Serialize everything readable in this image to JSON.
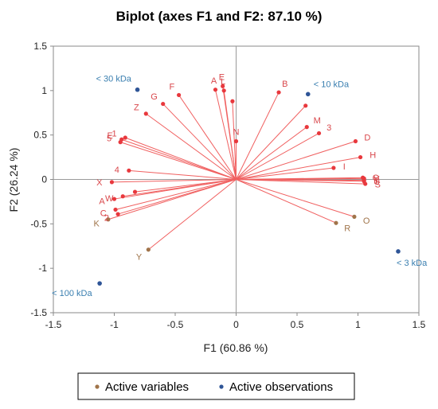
{
  "chart_data": {
    "type": "scatter",
    "title": "Biplot (axes F1 and F2: 87.10 %)",
    "xlabel": "F1 (60.86 %)",
    "ylabel": "F2 (26.24 %)",
    "xlim": [
      -1.5,
      1.5
    ],
    "ylim": [
      -1.5,
      1.5
    ],
    "xticks": [
      "-1.5",
      "-1",
      "-0.5",
      "0",
      "0.5",
      "1",
      "1.5"
    ],
    "yticks": [
      "-1.5",
      "-1",
      "-0.5",
      "0",
      "0.5",
      "1",
      "1.5"
    ],
    "grid": false,
    "legend_position": "bottom",
    "legend": [
      {
        "label": "Active variables",
        "color": "#a0744a"
      },
      {
        "label": "Active observations",
        "color": "#2f5597"
      }
    ],
    "colors": {
      "vector": "#f06060",
      "var_point": "#e8383d",
      "sup_point": "#a0744a",
      "obs_point": "#2f5597",
      "var_label": "#d9484c",
      "obs_label": "#3a7fb0"
    },
    "variables": [
      {
        "label": "A",
        "x": -0.17,
        "y": 1.01
      },
      {
        "label": "E",
        "x": -0.11,
        "y": 1.05
      },
      {
        "label": "L",
        "x": -0.1,
        "y": 1.0
      },
      {
        "label": "",
        "x": -0.03,
        "y": 0.88
      },
      {
        "label": "F",
        "x": -0.47,
        "y": 0.95
      },
      {
        "label": "G",
        "x": -0.6,
        "y": 0.85
      },
      {
        "label": "Z",
        "x": -0.74,
        "y": 0.74
      },
      {
        "label": "N",
        "x": 0.0,
        "y": 0.43
      },
      {
        "label": "B",
        "x": 0.35,
        "y": 0.98
      },
      {
        "label": "",
        "x": 0.57,
        "y": 0.83
      },
      {
        "label": "M",
        "x": 0.58,
        "y": 0.59
      },
      {
        "label": "3",
        "x": 0.68,
        "y": 0.52
      },
      {
        "label": "D",
        "x": 0.98,
        "y": 0.43
      },
      {
        "label": "H",
        "x": 1.02,
        "y": 0.25
      },
      {
        "label": "I",
        "x": 0.8,
        "y": 0.13
      },
      {
        "label": "Q",
        "x": 1.04,
        "y": 0.02
      },
      {
        "label": "V",
        "x": 1.05,
        "y": 0.01
      },
      {
        "label": "T",
        "x": 1.05,
        "y": -0.01
      },
      {
        "label": "U",
        "x": 1.05,
        "y": -0.02
      },
      {
        "label": "S",
        "x": 1.06,
        "y": -0.05
      },
      {
        "label": "1",
        "x": -0.91,
        "y": 0.47
      },
      {
        "label": "E",
        "x": -0.94,
        "y": 0.45
      },
      {
        "label": "5",
        "x": -0.95,
        "y": 0.42
      },
      {
        "label": "4",
        "x": -0.88,
        "y": 0.1
      },
      {
        "label": "X",
        "x": -1.02,
        "y": -0.03
      },
      {
        "label": "",
        "x": -0.83,
        "y": -0.14
      },
      {
        "label": "A",
        "x": -1.0,
        "y": -0.22
      },
      {
        "label": "W",
        "x": -0.93,
        "y": -0.19
      },
      {
        "label": "C",
        "x": -0.99,
        "y": -0.34
      },
      {
        "label": "2",
        "x": -0.97,
        "y": -0.39
      }
    ],
    "supplementary": [
      {
        "label": "K",
        "x": -1.05,
        "y": -0.45
      },
      {
        "label": "Y",
        "x": -0.72,
        "y": -0.79
      },
      {
        "label": "R",
        "x": 0.82,
        "y": -0.49
      },
      {
        "label": "O",
        "x": 0.97,
        "y": -0.42
      }
    ],
    "observations": [
      {
        "label": "< 30 kDa",
        "x": -0.81,
        "y": 1.01
      },
      {
        "label": "< 10 kDa",
        "x": 0.59,
        "y": 0.96
      },
      {
        "label": "< 3 kDa",
        "x": 1.33,
        "y": -0.81
      },
      {
        "label": "< 100 kDa",
        "x": -1.12,
        "y": -1.17
      }
    ]
  }
}
